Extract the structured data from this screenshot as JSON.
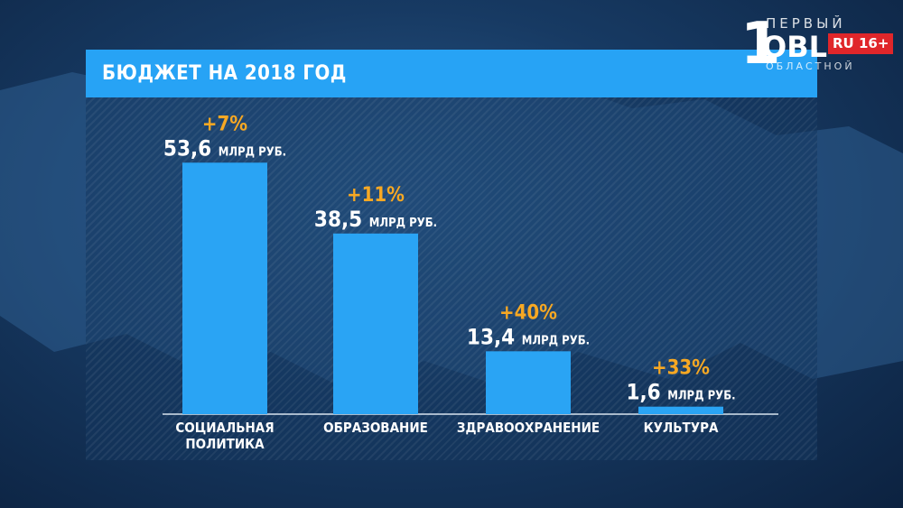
{
  "title": "БЮДЖЕТ НА 2018 ГОД",
  "logo": {
    "main": "1",
    "obl": "OBL",
    "top_text": "ПЕРВЫЙ",
    "bottom_text": "ОБЛАСТНОЙ",
    "badge": "RU 16+"
  },
  "colors": {
    "bar": "#2aa4f4",
    "title_bar": "#27a3f5",
    "change": "#f7a823",
    "value_text": "#ffffff"
  },
  "chart_data": {
    "type": "bar",
    "title": "БЮДЖЕТ НА 2018 ГОД",
    "categories": [
      [
        "СОЦИАЛЬНАЯ",
        "ПОЛИТИКА"
      ],
      [
        "ОБРАЗОВАНИЕ"
      ],
      [
        "ЗДРАВООХРАНЕНИЕ"
      ],
      [
        "КУЛЬТУРА"
      ]
    ],
    "values": [
      53.6,
      38.5,
      13.4,
      1.6
    ],
    "value_labels": [
      "53,6",
      "38,5",
      "13,4",
      "1,6"
    ],
    "unit": "МЛРД РУБ.",
    "changes": [
      "+7%",
      "+11%",
      "+40%",
      "+33%"
    ],
    "ylim": [
      0,
      60
    ],
    "grid": false,
    "legend": "none"
  }
}
